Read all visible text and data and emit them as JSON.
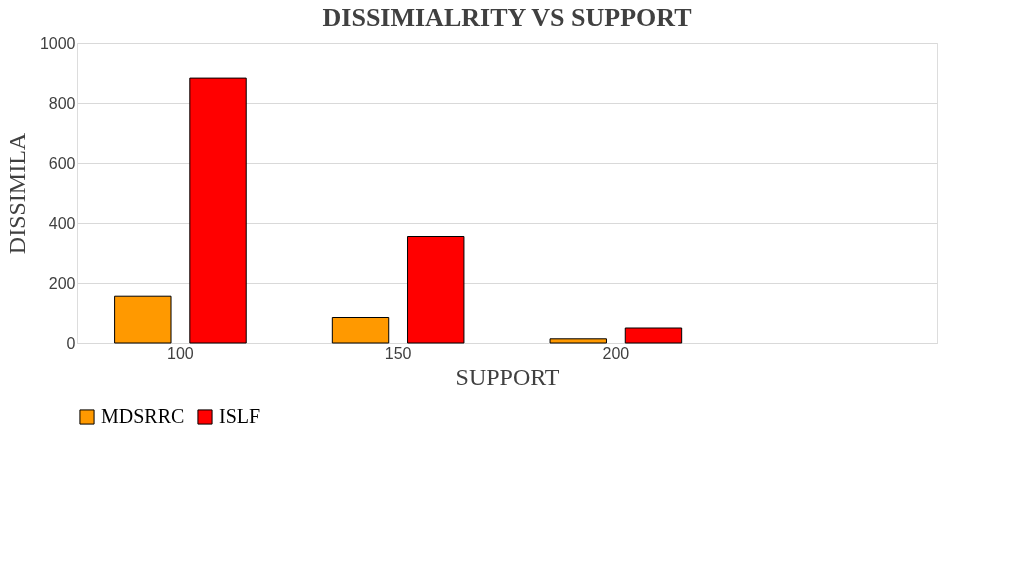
{
  "chart_data": {
    "type": "bar",
    "title": "DISSIMIALRITY VS SUPPORT",
    "xlabel": "SUPPORT",
    "ylabel": "DISSIMILA",
    "categories": [
      "100",
      "150",
      "200",
      null
    ],
    "series": [
      {
        "name": "MDSRRC",
        "color": "#ff9900",
        "values": [
          156,
          85,
          14,
          null
        ]
      },
      {
        "name": "ISLF",
        "color": "#ff0000",
        "values": [
          883,
          355,
          50,
          null
        ]
      }
    ],
    "ylim": [
      0,
      1000
    ],
    "yticks": [
      0,
      200,
      400,
      600,
      800,
      1000
    ],
    "grid": "y",
    "legend": "bottom"
  }
}
